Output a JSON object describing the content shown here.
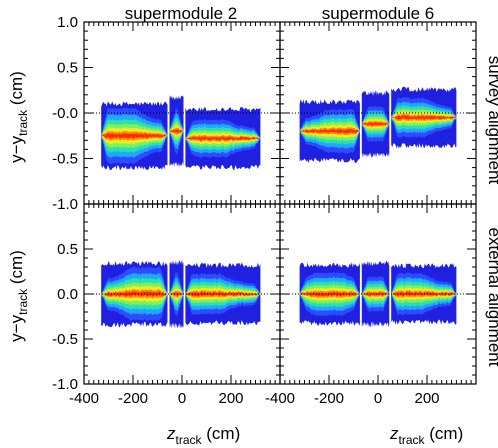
{
  "chart_data": {
    "type": "heatmap",
    "columns": [
      "supermodule 2",
      "supermodule 6"
    ],
    "rows": [
      "survey alignment",
      "external alignment"
    ],
    "xlabel": {
      "main": "z",
      "sub": "track",
      "unit": "(cm)"
    },
    "ylabel": {
      "main": "y−y",
      "sub": "track",
      "unit": "(cm)"
    },
    "xlim": [
      -400,
      400
    ],
    "ylim": [
      -1.0,
      1.0
    ],
    "x_ticks": [
      "-400",
      "-200",
      "0",
      "200"
    ],
    "x_ticks_last": "-400",
    "x_ticks_right": [
      "-200",
      "0",
      "200"
    ],
    "y_ticks_top": [
      "1.0",
      "0.5",
      "-0.0",
      "-0.5",
      "-1.0"
    ],
    "y_ticks_bottom": [
      "0.5",
      "0.0",
      "-0.5",
      "-1.0"
    ],
    "colorscale": [
      "#2020e0",
      "#2d4cff",
      "#1fa8ff",
      "#2ae0b0",
      "#7cf060",
      "#e8f020",
      "#ff8a00",
      "#ff2a10"
    ],
    "panels": [
      {
        "col": "supermodule 2",
        "row": "survey alignment",
        "z_range": [
          -330,
          320
        ],
        "gaps": [
          -55,
          10
        ],
        "segments": [
          {
            "z": [
              -330,
              -55
            ],
            "center": -0.25,
            "width": 0.35,
            "peak": -250,
            "intensity": 1.0
          },
          {
            "z": [
              -55,
              10
            ],
            "center": -0.2,
            "width": 0.38,
            "peak": -20,
            "intensity": 0.8
          },
          {
            "z": [
              10,
              320
            ],
            "center": -0.28,
            "width": 0.33,
            "peak": 120,
            "intensity": 0.75
          }
        ]
      },
      {
        "col": "supermodule 6",
        "row": "survey alignment",
        "z_range": [
          -320,
          320
        ],
        "gaps": [
          -70,
          50
        ],
        "segments": [
          {
            "z": [
              -320,
              -70
            ],
            "center": -0.2,
            "width": 0.33,
            "peak": -150,
            "intensity": 0.85
          },
          {
            "z": [
              -70,
              50
            ],
            "center": -0.12,
            "width": 0.36,
            "peak": 0,
            "intensity": 0.65
          },
          {
            "z": [
              50,
              320
            ],
            "center": -0.05,
            "width": 0.32,
            "peak": 130,
            "intensity": 0.8
          }
        ]
      },
      {
        "col": "supermodule 2",
        "row": "external alignment",
        "z_range": [
          -330,
          320
        ],
        "gaps": [
          -55,
          10
        ],
        "segments": [
          {
            "z": [
              -330,
              -55
            ],
            "center": 0.0,
            "width": 0.34,
            "peak": -150,
            "intensity": 1.0
          },
          {
            "z": [
              -55,
              10
            ],
            "center": 0.0,
            "width": 0.36,
            "peak": -30,
            "intensity": 0.8
          },
          {
            "z": [
              10,
              320
            ],
            "center": 0.0,
            "width": 0.33,
            "peak": 100,
            "intensity": 0.8
          }
        ]
      },
      {
        "col": "supermodule 6",
        "row": "external alignment",
        "z_range": [
          -320,
          320
        ],
        "gaps": [
          -70,
          50
        ],
        "segments": [
          {
            "z": [
              -320,
              -70
            ],
            "center": 0.0,
            "width": 0.33,
            "peak": -200,
            "intensity": 0.85
          },
          {
            "z": [
              -70,
              50
            ],
            "center": 0.0,
            "width": 0.36,
            "peak": -30,
            "intensity": 0.65
          },
          {
            "z": [
              50,
              320
            ],
            "center": 0.0,
            "width": 0.32,
            "peak": 120,
            "intensity": 0.85
          }
        ]
      }
    ],
    "reference_line": 0.0,
    "grid": false
  }
}
